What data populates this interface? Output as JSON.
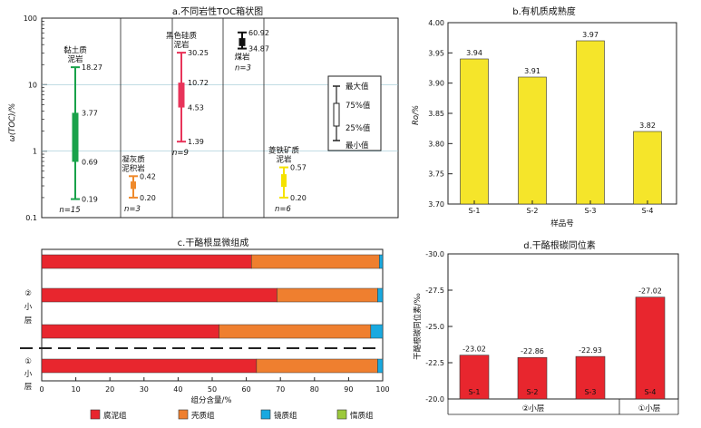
{
  "chart_data": [
    {
      "id": "a",
      "type": "box",
      "title": "a.不同岩性TOC箱状图",
      "ylabel": "ω(TOC)/%",
      "yscale": "log",
      "ylim": [
        0.1,
        100
      ],
      "yticks": [
        "0.1",
        "1",
        "10",
        "100"
      ],
      "series": [
        {
          "name_lines": [
            "黏土质",
            "泥岩"
          ],
          "n": "n=15",
          "min": 0.19,
          "q1": 0.69,
          "q3": 3.77,
          "max": 18.27,
          "labels": {
            "max": "18.27",
            "q3": "3.77",
            "q1": "0.69",
            "min": "0.19"
          },
          "color": "#19a24a"
        },
        {
          "name_lines": [
            "凝灰质",
            "泥积岩"
          ],
          "n": "n=3",
          "min": 0.2,
          "q1": 0.27,
          "q3": 0.35,
          "max": 0.42,
          "labels": {
            "max": "0.42",
            "min": "0.20"
          },
          "color": "#ef8a2c"
        },
        {
          "name_lines": [
            "黑色硅质",
            "泥岩"
          ],
          "n": "n=9",
          "min": 1.39,
          "q1": 4.53,
          "q3": 10.72,
          "max": 30.25,
          "labels": {
            "max": "30.25",
            "q3": "10.72",
            "q1": "4.53",
            "min": "1.39"
          },
          "color": "#e8345a"
        },
        {
          "name_lines": [
            "煤岩"
          ],
          "n": "n=3",
          "min": 34.87,
          "q1": 38,
          "q3": 50,
          "max": 60.92,
          "labels": {
            "max": "60.92",
            "min": "34.87"
          },
          "color": "#111111"
        },
        {
          "name_lines": [
            "菱铁矿质",
            "泥岩"
          ],
          "n": "n=6",
          "min": 0.2,
          "q1": 0.29,
          "q3": 0.45,
          "max": 0.57,
          "labels": {
            "max": "0.57",
            "min": "0.20"
          },
          "color": "#f5e200"
        }
      ],
      "legend": [
        "最大值",
        "75%值",
        "25%值",
        "最小值"
      ]
    },
    {
      "id": "b",
      "type": "bar",
      "title": "b.有机质成熟度",
      "ylabel": "Ro/%",
      "xlabel": "样品号",
      "categories": [
        "S-1",
        "S-2",
        "S-3",
        "S-4"
      ],
      "values": [
        3.94,
        3.91,
        3.97,
        3.82
      ],
      "value_labels": [
        "3.94",
        "3.91",
        "3.97",
        "3.82"
      ],
      "ylim": [
        3.7,
        4.0
      ],
      "yticks": [
        "3.70",
        "3.75",
        "3.80",
        "3.85",
        "3.90",
        "3.95",
        "4.00"
      ],
      "color": "#f5e52a"
    },
    {
      "id": "c",
      "type": "stacked_bar_horizontal",
      "title": "c.干酪根显微组成",
      "xlabel": "组分含量/%",
      "xlim": [
        0,
        100
      ],
      "xticks": [
        "0",
        "10",
        "20",
        "30",
        "40",
        "50",
        "60",
        "70",
        "80",
        "90",
        "100"
      ],
      "bars": [
        [
          61.5,
          37.5,
          1.0,
          0
        ],
        [
          69,
          29.5,
          1.5,
          0
        ],
        [
          52,
          44.5,
          3.5,
          0
        ],
        [
          63,
          35.5,
          1.5,
          0
        ]
      ],
      "series": [
        {
          "name": "腐泥组",
          "color": "#e8262e"
        },
        {
          "name": "壳质组",
          "color": "#ef7f2f"
        },
        {
          "name": "镜质组",
          "color": "#19a9e0"
        },
        {
          "name": "惰质组",
          "color": "#9cc93c"
        }
      ],
      "group_labels": [
        [
          "②",
          "小",
          "层"
        ],
        [
          "①",
          "小",
          "层"
        ]
      ]
    },
    {
      "id": "d",
      "type": "bar",
      "title": "d.干酪根碳同位素",
      "ylabel": "干酪根碳同位素/‰",
      "categories": [
        "S-1",
        "S-2",
        "S-3",
        "S-4"
      ],
      "values": [
        -23.02,
        -22.86,
        -22.93,
        -27.02
      ],
      "value_labels": [
        "-23.02",
        "-22.86",
        "-22.93",
        "-27.02"
      ],
      "ylim": [
        -20.0,
        -30.0
      ],
      "yticks": [
        "-20.0",
        "-22.5",
        "-25.0",
        "-27.5",
        "-30.0"
      ],
      "color": "#e8262e",
      "groups": [
        "②小层",
        "①小层"
      ]
    }
  ]
}
